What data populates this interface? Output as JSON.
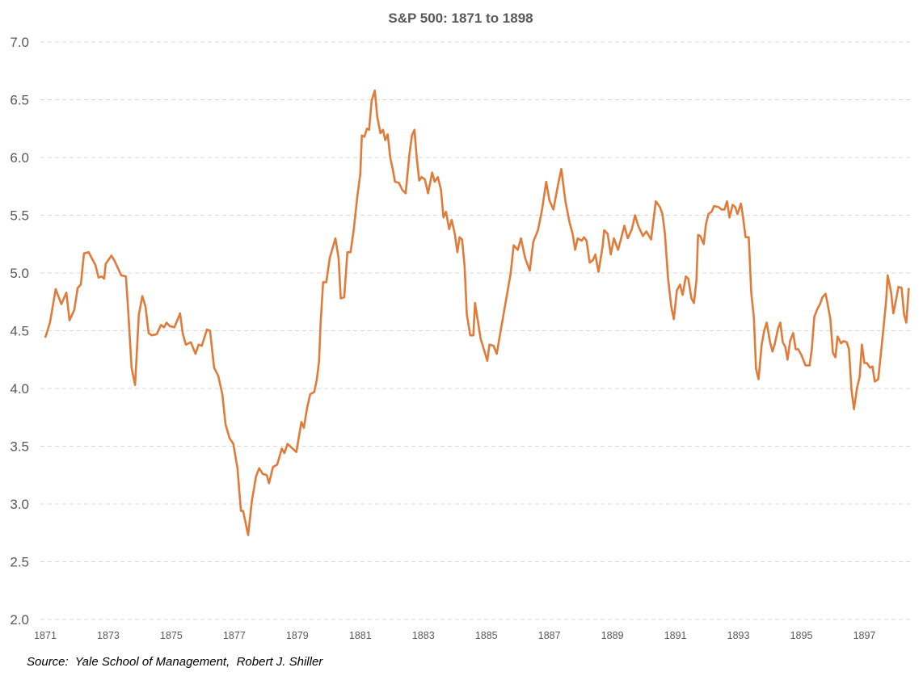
{
  "chart_data": {
    "type": "line",
    "title": "S&P 500: 1871 to 1898",
    "xlabel": "",
    "ylabel": "",
    "xlim": [
      1871,
      1898.45
    ],
    "ylim": [
      2.0,
      7.0
    ],
    "yticks": [
      "2.0",
      "2.5",
      "3.0",
      "3.5",
      "4.0",
      "4.5",
      "5.0",
      "5.5",
      "6.0",
      "6.5",
      "7.0"
    ],
    "xticks": [
      "1871",
      "1873",
      "1875",
      "1877",
      "1879",
      "1881",
      "1883",
      "1885",
      "1887",
      "1889",
      "1891",
      "1893",
      "1895",
      "1897"
    ],
    "grid": "horizontal dashed",
    "legend": "none",
    "line_color": "#E07B39",
    "series": [
      {
        "points": [
          [
            1871.0,
            4.44
          ],
          [
            1871.15,
            4.57
          ],
          [
            1871.33,
            4.86
          ],
          [
            1871.51,
            4.73
          ],
          [
            1871.67,
            4.83
          ],
          [
            1871.77,
            4.59
          ],
          [
            1871.92,
            4.68
          ],
          [
            1872.03,
            4.87
          ],
          [
            1872.13,
            4.9
          ],
          [
            1872.23,
            5.17
          ],
          [
            1872.38,
            5.18
          ],
          [
            1872.49,
            5.12
          ],
          [
            1872.59,
            5.07
          ],
          [
            1872.69,
            4.96
          ],
          [
            1872.79,
            4.97
          ],
          [
            1872.87,
            4.95
          ],
          [
            1872.92,
            5.08
          ],
          [
            1873.1,
            5.15
          ],
          [
            1873.21,
            5.1
          ],
          [
            1873.31,
            5.04
          ],
          [
            1873.41,
            4.98
          ],
          [
            1873.56,
            4.97
          ],
          [
            1873.64,
            4.64
          ],
          [
            1873.74,
            4.18
          ],
          [
            1873.85,
            4.03
          ],
          [
            1873.97,
            4.64
          ],
          [
            1874.08,
            4.8
          ],
          [
            1874.18,
            4.71
          ],
          [
            1874.28,
            4.48
          ],
          [
            1874.38,
            4.46
          ],
          [
            1874.54,
            4.47
          ],
          [
            1874.67,
            4.55
          ],
          [
            1874.77,
            4.53
          ],
          [
            1874.85,
            4.57
          ],
          [
            1874.95,
            4.54
          ],
          [
            1875.1,
            4.53
          ],
          [
            1875.28,
            4.65
          ],
          [
            1875.36,
            4.48
          ],
          [
            1875.46,
            4.38
          ],
          [
            1875.62,
            4.4
          ],
          [
            1875.77,
            4.3
          ],
          [
            1875.87,
            4.38
          ],
          [
            1875.97,
            4.37
          ],
          [
            1876.13,
            4.51
          ],
          [
            1876.23,
            4.5
          ],
          [
            1876.36,
            4.18
          ],
          [
            1876.49,
            4.11
          ],
          [
            1876.62,
            3.95
          ],
          [
            1876.72,
            3.69
          ],
          [
            1876.85,
            3.57
          ],
          [
            1876.97,
            3.52
          ],
          [
            1877.1,
            3.31
          ],
          [
            1877.21,
            2.94
          ],
          [
            1877.28,
            2.94
          ],
          [
            1877.44,
            2.73
          ],
          [
            1877.56,
            3.03
          ],
          [
            1877.69,
            3.24
          ],
          [
            1877.79,
            3.31
          ],
          [
            1877.9,
            3.26
          ],
          [
            1878.03,
            3.25
          ],
          [
            1878.1,
            3.18
          ],
          [
            1878.23,
            3.32
          ],
          [
            1878.36,
            3.34
          ],
          [
            1878.51,
            3.48
          ],
          [
            1878.59,
            3.44
          ],
          [
            1878.69,
            3.52
          ],
          [
            1878.85,
            3.48
          ],
          [
            1878.97,
            3.45
          ],
          [
            1879.13,
            3.71
          ],
          [
            1879.21,
            3.66
          ],
          [
            1879.31,
            3.83
          ],
          [
            1879.41,
            3.95
          ],
          [
            1879.54,
            3.97
          ],
          [
            1879.62,
            4.08
          ],
          [
            1879.69,
            4.23
          ],
          [
            1879.74,
            4.57
          ],
          [
            1879.82,
            4.92
          ],
          [
            1879.92,
            4.92
          ],
          [
            1880.03,
            5.13
          ],
          [
            1880.21,
            5.3
          ],
          [
            1880.31,
            5.13
          ],
          [
            1880.38,
            4.78
          ],
          [
            1880.49,
            4.79
          ],
          [
            1880.59,
            5.18
          ],
          [
            1880.69,
            5.18
          ],
          [
            1880.79,
            5.37
          ],
          [
            1880.9,
            5.65
          ],
          [
            1881.0,
            5.86
          ],
          [
            1881.05,
            6.19
          ],
          [
            1881.13,
            6.18
          ],
          [
            1881.21,
            6.25
          ],
          [
            1881.28,
            6.24
          ],
          [
            1881.36,
            6.49
          ],
          [
            1881.46,
            6.58
          ],
          [
            1881.54,
            6.35
          ],
          [
            1881.64,
            6.21
          ],
          [
            1881.72,
            6.24
          ],
          [
            1881.79,
            6.15
          ],
          [
            1881.87,
            6.2
          ],
          [
            1881.95,
            6.0
          ],
          [
            1882.03,
            5.9
          ],
          [
            1882.1,
            5.79
          ],
          [
            1882.23,
            5.78
          ],
          [
            1882.33,
            5.72
          ],
          [
            1882.44,
            5.69
          ],
          [
            1882.56,
            6.03
          ],
          [
            1882.64,
            6.19
          ],
          [
            1882.72,
            6.24
          ],
          [
            1882.79,
            6.0
          ],
          [
            1882.87,
            5.8
          ],
          [
            1882.95,
            5.83
          ],
          [
            1883.05,
            5.81
          ],
          [
            1883.15,
            5.69
          ],
          [
            1883.28,
            5.87
          ],
          [
            1883.36,
            5.79
          ],
          [
            1883.46,
            5.83
          ],
          [
            1883.56,
            5.72
          ],
          [
            1883.64,
            5.48
          ],
          [
            1883.72,
            5.53
          ],
          [
            1883.82,
            5.38
          ],
          [
            1883.9,
            5.46
          ],
          [
            1884.0,
            5.34
          ],
          [
            1884.08,
            5.18
          ],
          [
            1884.15,
            5.31
          ],
          [
            1884.23,
            5.29
          ],
          [
            1884.31,
            5.06
          ],
          [
            1884.38,
            4.64
          ],
          [
            1884.49,
            4.46
          ],
          [
            1884.59,
            4.46
          ],
          [
            1884.64,
            4.74
          ],
          [
            1884.74,
            4.57
          ],
          [
            1884.82,
            4.43
          ],
          [
            1884.92,
            4.34
          ],
          [
            1885.03,
            4.24
          ],
          [
            1885.1,
            4.38
          ],
          [
            1885.23,
            4.37
          ],
          [
            1885.33,
            4.3
          ],
          [
            1885.46,
            4.51
          ],
          [
            1885.59,
            4.71
          ],
          [
            1885.77,
            4.99
          ],
          [
            1885.87,
            5.24
          ],
          [
            1886.0,
            5.2
          ],
          [
            1886.1,
            5.3
          ],
          [
            1886.23,
            5.13
          ],
          [
            1886.38,
            5.02
          ],
          [
            1886.49,
            5.27
          ],
          [
            1886.64,
            5.37
          ],
          [
            1886.77,
            5.55
          ],
          [
            1886.9,
            5.79
          ],
          [
            1887.0,
            5.63
          ],
          [
            1887.13,
            5.55
          ],
          [
            1887.28,
            5.77
          ],
          [
            1887.38,
            5.9
          ],
          [
            1887.51,
            5.62
          ],
          [
            1887.64,
            5.44
          ],
          [
            1887.74,
            5.34
          ],
          [
            1887.82,
            5.2
          ],
          [
            1887.9,
            5.3
          ],
          [
            1888.03,
            5.28
          ],
          [
            1888.1,
            5.31
          ],
          [
            1888.18,
            5.28
          ],
          [
            1888.28,
            5.09
          ],
          [
            1888.38,
            5.11
          ],
          [
            1888.46,
            5.16
          ],
          [
            1888.56,
            5.01
          ],
          [
            1888.69,
            5.23
          ],
          [
            1888.74,
            5.37
          ],
          [
            1888.85,
            5.34
          ],
          [
            1888.95,
            5.16
          ],
          [
            1889.05,
            5.3
          ],
          [
            1889.18,
            5.2
          ],
          [
            1889.26,
            5.28
          ],
          [
            1889.38,
            5.41
          ],
          [
            1889.49,
            5.3
          ],
          [
            1889.62,
            5.38
          ],
          [
            1889.72,
            5.5
          ],
          [
            1889.82,
            5.41
          ],
          [
            1889.97,
            5.32
          ],
          [
            1890.08,
            5.36
          ],
          [
            1890.23,
            5.29
          ],
          [
            1890.38,
            5.62
          ],
          [
            1890.51,
            5.57
          ],
          [
            1890.59,
            5.51
          ],
          [
            1890.67,
            5.34
          ],
          [
            1890.77,
            4.95
          ],
          [
            1890.87,
            4.71
          ],
          [
            1890.95,
            4.6
          ],
          [
            1891.05,
            4.85
          ],
          [
            1891.15,
            4.9
          ],
          [
            1891.23,
            4.81
          ],
          [
            1891.33,
            4.97
          ],
          [
            1891.41,
            4.95
          ],
          [
            1891.51,
            4.78
          ],
          [
            1891.59,
            4.74
          ],
          [
            1891.67,
            4.94
          ],
          [
            1891.72,
            5.33
          ],
          [
            1891.79,
            5.32
          ],
          [
            1891.9,
            5.25
          ],
          [
            1891.97,
            5.42
          ],
          [
            1892.05,
            5.51
          ],
          [
            1892.15,
            5.53
          ],
          [
            1892.23,
            5.58
          ],
          [
            1892.38,
            5.57
          ],
          [
            1892.46,
            5.55
          ],
          [
            1892.56,
            5.55
          ],
          [
            1892.64,
            5.62
          ],
          [
            1892.72,
            5.48
          ],
          [
            1892.82,
            5.59
          ],
          [
            1892.9,
            5.57
          ],
          [
            1892.97,
            5.51
          ],
          [
            1893.08,
            5.6
          ],
          [
            1893.13,
            5.52
          ],
          [
            1893.23,
            5.31
          ],
          [
            1893.33,
            5.31
          ],
          [
            1893.41,
            4.83
          ],
          [
            1893.49,
            4.62
          ],
          [
            1893.56,
            4.17
          ],
          [
            1893.64,
            4.08
          ],
          [
            1893.74,
            4.38
          ],
          [
            1893.82,
            4.5
          ],
          [
            1893.9,
            4.57
          ],
          [
            1894.0,
            4.41
          ],
          [
            1894.08,
            4.32
          ],
          [
            1894.15,
            4.38
          ],
          [
            1894.26,
            4.52
          ],
          [
            1894.33,
            4.57
          ],
          [
            1894.41,
            4.4
          ],
          [
            1894.49,
            4.36
          ],
          [
            1894.56,
            4.25
          ],
          [
            1894.64,
            4.41
          ],
          [
            1894.74,
            4.48
          ],
          [
            1894.82,
            4.34
          ],
          [
            1894.9,
            4.34
          ],
          [
            1895.0,
            4.29
          ],
          [
            1895.13,
            4.2
          ],
          [
            1895.26,
            4.2
          ],
          [
            1895.33,
            4.34
          ],
          [
            1895.41,
            4.62
          ],
          [
            1895.51,
            4.69
          ],
          [
            1895.59,
            4.73
          ],
          [
            1895.67,
            4.79
          ],
          [
            1895.77,
            4.82
          ],
          [
            1895.82,
            4.75
          ],
          [
            1895.92,
            4.6
          ],
          [
            1896.0,
            4.31
          ],
          [
            1896.08,
            4.27
          ],
          [
            1896.15,
            4.45
          ],
          [
            1896.26,
            4.39
          ],
          [
            1896.33,
            4.41
          ],
          [
            1896.44,
            4.4
          ],
          [
            1896.51,
            4.34
          ],
          [
            1896.59,
            3.99
          ],
          [
            1896.67,
            3.82
          ],
          [
            1896.77,
            4.01
          ],
          [
            1896.85,
            4.1
          ],
          [
            1896.92,
            4.38
          ],
          [
            1897.0,
            4.22
          ],
          [
            1897.08,
            4.22
          ],
          [
            1897.18,
            4.18
          ],
          [
            1897.26,
            4.19
          ],
          [
            1897.33,
            4.06
          ],
          [
            1897.44,
            4.08
          ],
          [
            1897.51,
            4.27
          ],
          [
            1897.59,
            4.48
          ],
          [
            1897.69,
            4.76
          ],
          [
            1897.74,
            4.98
          ],
          [
            1897.85,
            4.83
          ],
          [
            1897.92,
            4.65
          ],
          [
            1898.0,
            4.76
          ],
          [
            1898.08,
            4.88
          ],
          [
            1898.18,
            4.87
          ],
          [
            1898.26,
            4.64
          ],
          [
            1898.33,
            4.57
          ],
          [
            1898.41,
            4.87
          ]
        ]
      }
    ]
  },
  "source": "Source:  Yale School of Management,  Robert J. Shiller"
}
